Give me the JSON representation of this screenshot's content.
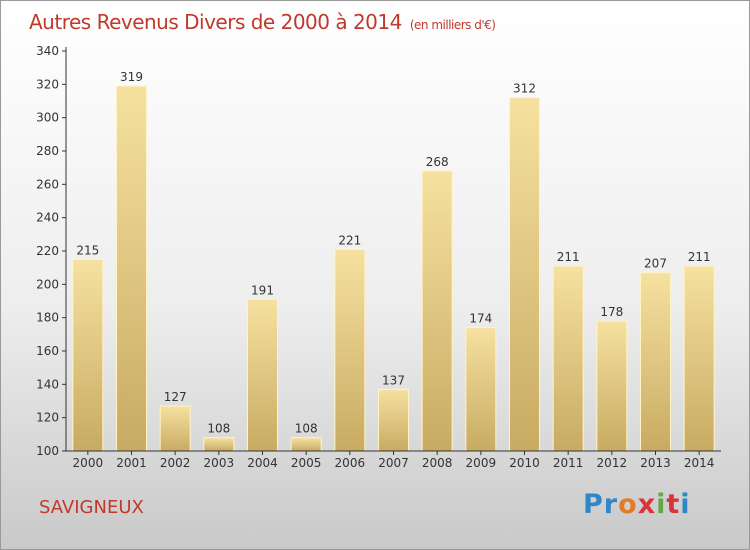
{
  "chart_data": {
    "type": "bar",
    "title": "Autres Revenus Divers de 2000 à 2014",
    "subtitle": "(en milliers d'€)",
    "categories": [
      "2000",
      "2001",
      "2002",
      "2003",
      "2004",
      "2005",
      "2006",
      "2007",
      "2008",
      "2009",
      "2010",
      "2011",
      "2012",
      "2013",
      "2014"
    ],
    "values": [
      215,
      319,
      127,
      108,
      191,
      108,
      221,
      137,
      268,
      174,
      312,
      211,
      178,
      207,
      211
    ],
    "ylim": [
      100,
      340
    ],
    "yticks": [
      100,
      120,
      140,
      160,
      180,
      200,
      220,
      240,
      260,
      280,
      300,
      320,
      340
    ],
    "xlabel": "",
    "ylabel": "",
    "grid": false,
    "bar_color_top": "#f6e1a0",
    "bar_color_bottom": "#c8ab62"
  },
  "footer": {
    "commune": "SAVIGNEUX",
    "logo_letters": [
      {
        "ch": "P",
        "color": "#2f87c8"
      },
      {
        "ch": "r",
        "color": "#2f87c8"
      },
      {
        "ch": "o",
        "color": "#e37c24"
      },
      {
        "ch": "x",
        "color": "#d9343a"
      },
      {
        "ch": "i",
        "color": "#63a844"
      },
      {
        "ch": "t",
        "color": "#d9343a"
      },
      {
        "ch": "i",
        "color": "#2f87c8"
      }
    ]
  },
  "colors": {
    "title": "#c0392b",
    "axis": "#333333"
  }
}
